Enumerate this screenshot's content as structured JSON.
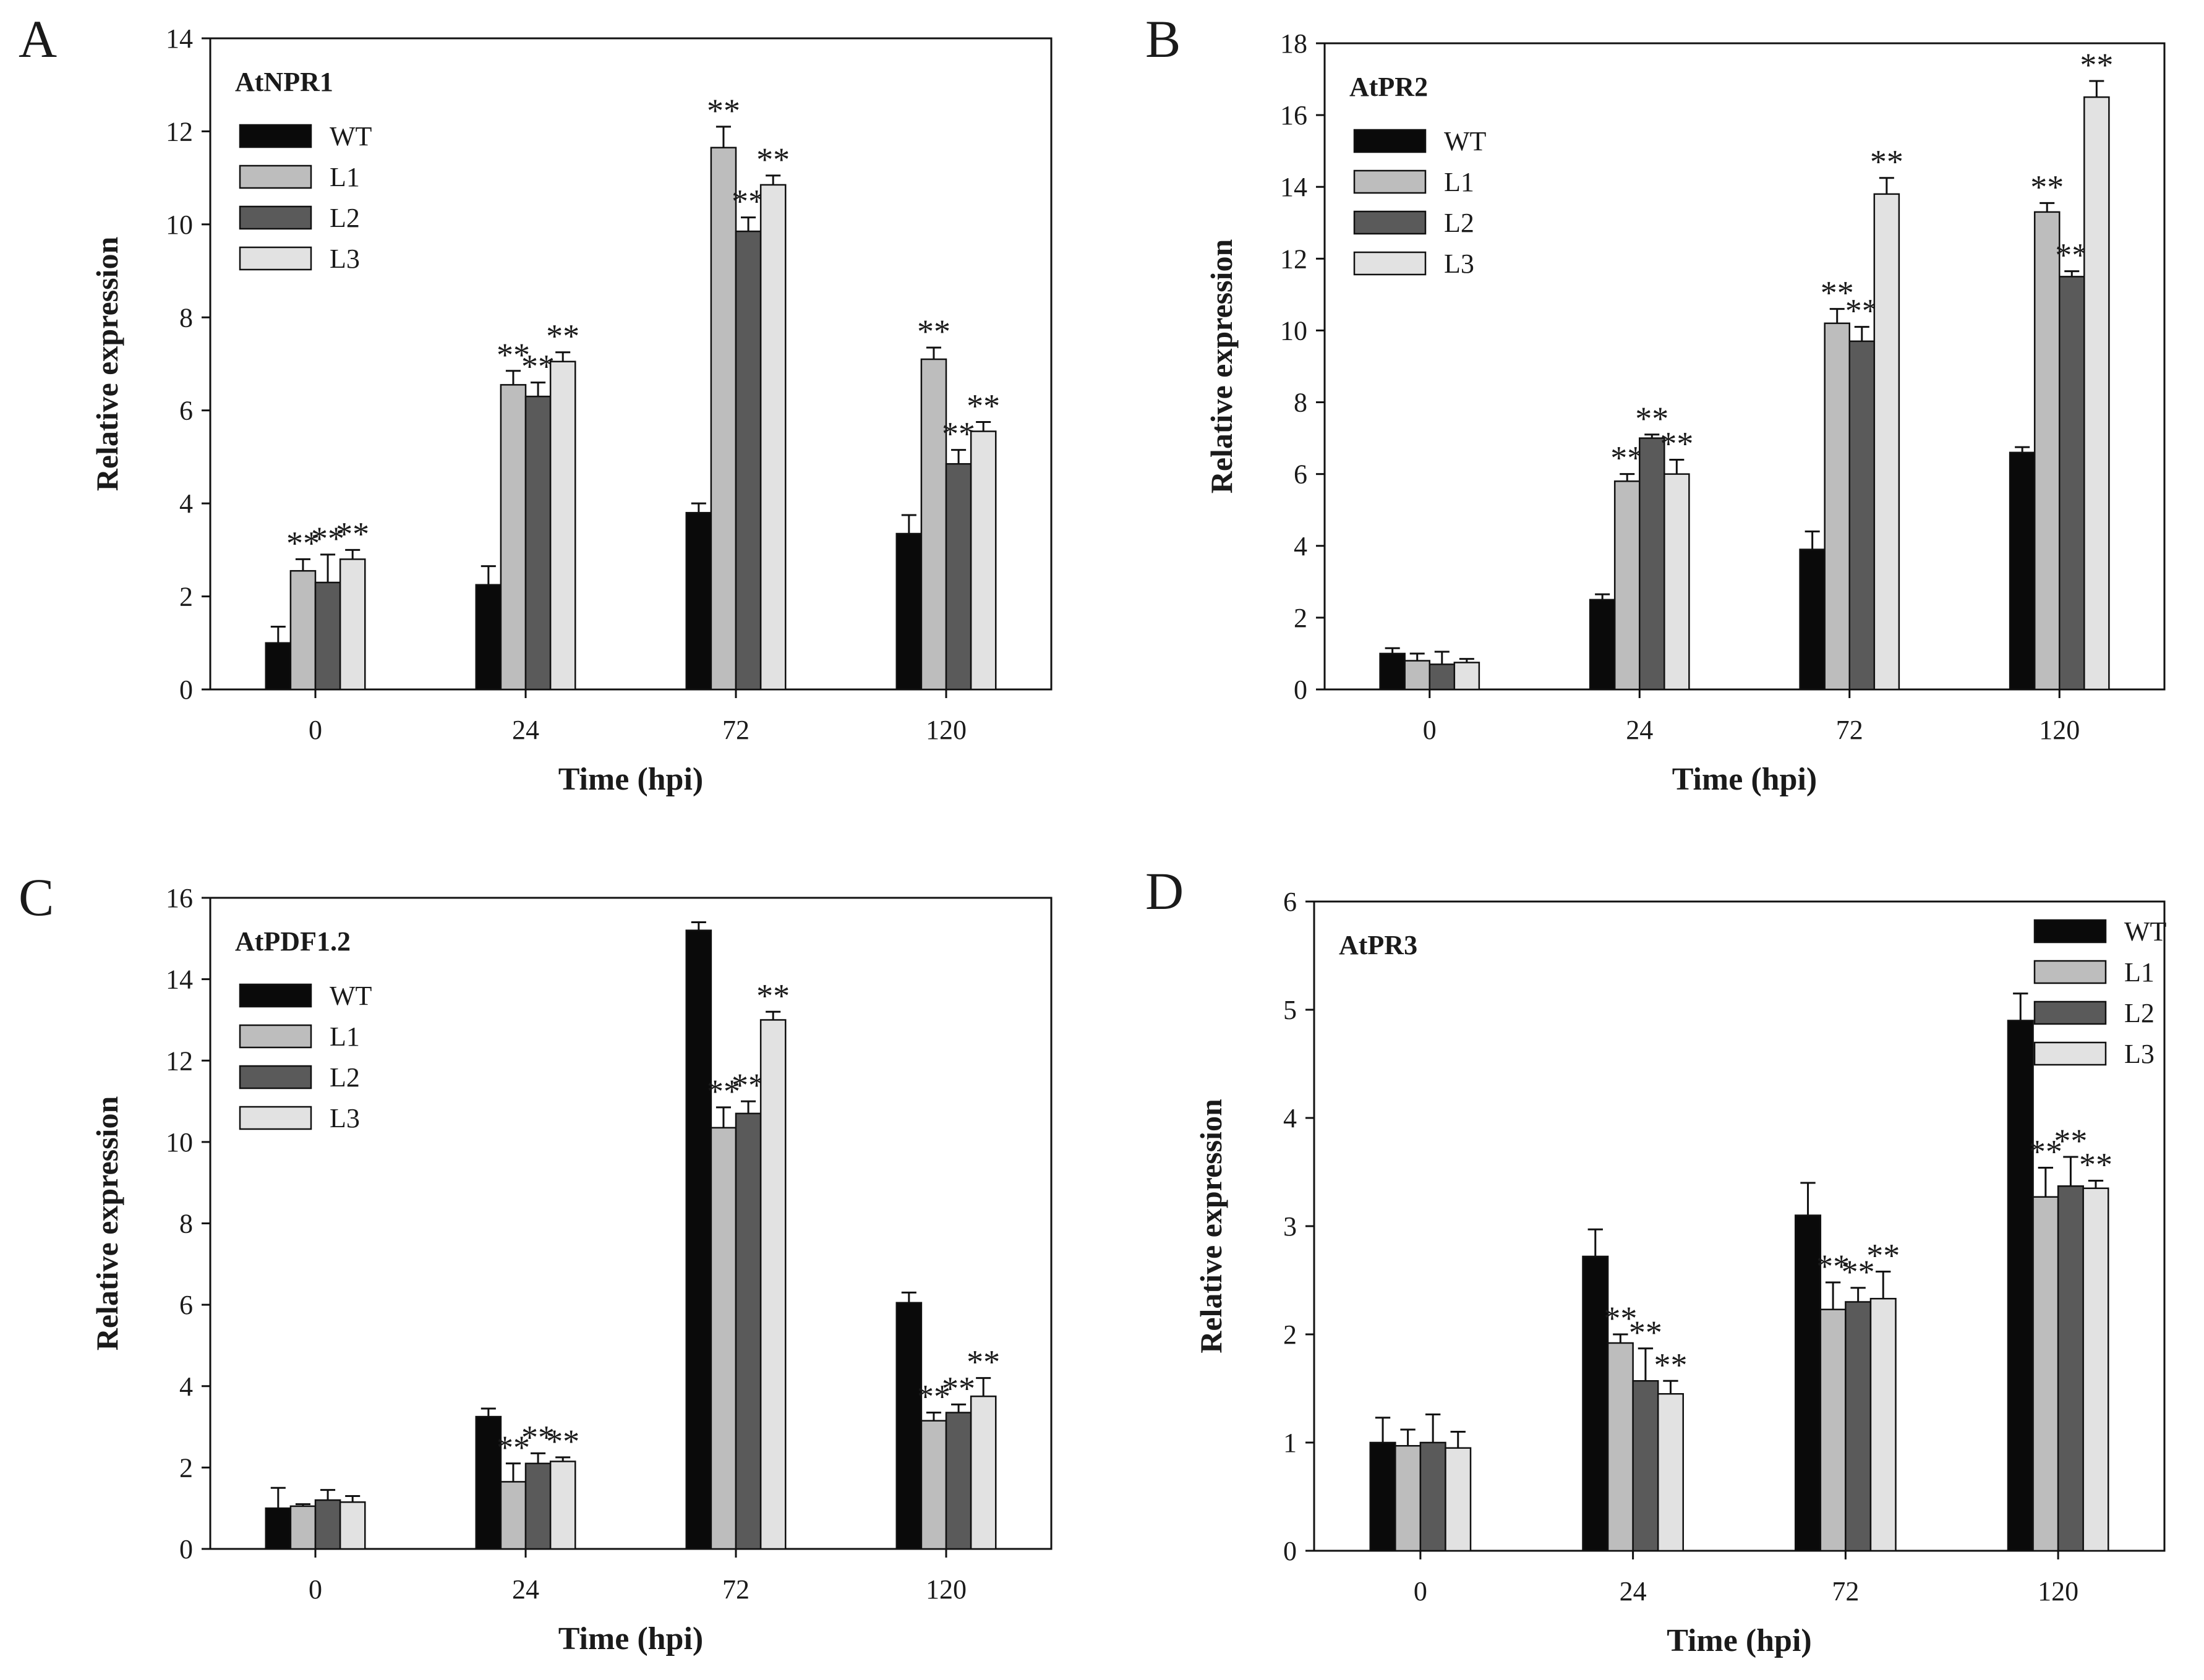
{
  "figure": {
    "series_colors": {
      "WT": "#0a0a0a",
      "L1": "#bdbdbd",
      "L2": "#5a5a5a",
      "L3": "#e2e2e2"
    },
    "significance_mark": "**"
  },
  "chart_data": [
    {
      "panel": "A",
      "type": "bar",
      "title": "AtNPR1",
      "xlabel": "Time (hpi)",
      "ylabel": "Relative expression",
      "ylim": [
        0,
        14
      ],
      "yticks": [
        0,
        2,
        4,
        6,
        8,
        10,
        12,
        14
      ],
      "categories": [
        "0",
        "24",
        "72",
        "120"
      ],
      "legend_position": "top-left",
      "series": [
        {
          "name": "WT",
          "values": [
            1.0,
            2.25,
            3.8,
            3.35
          ],
          "errors": [
            0.35,
            0.4,
            0.2,
            0.4
          ],
          "significant": [
            false,
            false,
            false,
            false
          ]
        },
        {
          "name": "L1",
          "values": [
            2.55,
            6.55,
            11.65,
            7.1
          ],
          "errors": [
            0.25,
            0.3,
            0.45,
            0.25
          ],
          "significant": [
            true,
            true,
            true,
            true
          ]
        },
        {
          "name": "L2",
          "values": [
            2.3,
            6.3,
            9.85,
            4.85
          ],
          "errors": [
            0.6,
            0.3,
            0.3,
            0.3
          ],
          "significant": [
            true,
            true,
            true,
            true
          ]
        },
        {
          "name": "L3",
          "values": [
            2.8,
            7.05,
            10.85,
            5.55
          ],
          "errors": [
            0.2,
            0.2,
            0.2,
            0.2
          ],
          "significant": [
            true,
            true,
            true,
            true
          ]
        }
      ]
    },
    {
      "panel": "B",
      "type": "bar",
      "title": "AtPR2",
      "xlabel": "Time (hpi)",
      "ylabel": "Relative expression",
      "ylim": [
        0,
        18
      ],
      "yticks": [
        0,
        2,
        4,
        6,
        8,
        10,
        12,
        14,
        16,
        18
      ],
      "categories": [
        "0",
        "24",
        "72",
        "120"
      ],
      "legend_position": "top-left",
      "series": [
        {
          "name": "WT",
          "values": [
            1.0,
            2.5,
            3.9,
            6.6
          ],
          "errors": [
            0.15,
            0.15,
            0.5,
            0.15
          ],
          "significant": [
            false,
            false,
            false,
            false
          ]
        },
        {
          "name": "L1",
          "values": [
            0.8,
            5.8,
            10.2,
            13.3
          ],
          "errors": [
            0.2,
            0.2,
            0.4,
            0.25
          ],
          "significant": [
            false,
            true,
            true,
            true
          ]
        },
        {
          "name": "L2",
          "values": [
            0.7,
            7.0,
            9.7,
            11.5
          ],
          "errors": [
            0.35,
            0.1,
            0.4,
            0.15
          ],
          "significant": [
            false,
            true,
            true,
            true
          ]
        },
        {
          "name": "L3",
          "values": [
            0.75,
            6.0,
            13.8,
            16.5
          ],
          "errors": [
            0.1,
            0.4,
            0.45,
            0.45
          ],
          "significant": [
            false,
            true,
            true,
            true
          ]
        }
      ]
    },
    {
      "panel": "C",
      "type": "bar",
      "title": "AtPDF1.2",
      "xlabel": "Time (hpi)",
      "ylabel": "Relative expression",
      "ylim": [
        0,
        16
      ],
      "yticks": [
        0,
        2,
        4,
        6,
        8,
        10,
        12,
        14,
        16
      ],
      "categories": [
        "0",
        "24",
        "72",
        "120"
      ],
      "legend_position": "top-left",
      "series": [
        {
          "name": "WT",
          "values": [
            1.0,
            3.25,
            15.2,
            6.05
          ],
          "errors": [
            0.5,
            0.2,
            0.2,
            0.25
          ],
          "significant": [
            false,
            false,
            false,
            false
          ]
        },
        {
          "name": "L1",
          "values": [
            1.05,
            1.65,
            10.35,
            3.15
          ],
          "errors": [
            0.05,
            0.45,
            0.5,
            0.2
          ],
          "significant": [
            false,
            true,
            true,
            true
          ]
        },
        {
          "name": "L2",
          "values": [
            1.2,
            2.1,
            10.7,
            3.35
          ],
          "errors": [
            0.25,
            0.25,
            0.3,
            0.2
          ],
          "significant": [
            false,
            true,
            true,
            true
          ]
        },
        {
          "name": "L3",
          "values": [
            1.15,
            2.15,
            13.0,
            3.75
          ],
          "errors": [
            0.15,
            0.1,
            0.2,
            0.45
          ],
          "significant": [
            false,
            true,
            true,
            true
          ]
        }
      ]
    },
    {
      "panel": "D",
      "type": "bar",
      "title": "AtPR3",
      "xlabel": "Time (hpi)",
      "ylabel": "Relative expression",
      "ylim": [
        0,
        6
      ],
      "yticks": [
        0,
        1,
        2,
        3,
        4,
        5,
        6
      ],
      "categories": [
        "0",
        "24",
        "72",
        "120"
      ],
      "legend_position": "top-right",
      "series": [
        {
          "name": "WT",
          "values": [
            1.0,
            2.72,
            3.1,
            4.9
          ],
          "errors": [
            0.23,
            0.25,
            0.3,
            0.25
          ],
          "significant": [
            false,
            false,
            false,
            false
          ]
        },
        {
          "name": "L1",
          "values": [
            0.97,
            1.92,
            2.23,
            3.27
          ],
          "errors": [
            0.15,
            0.08,
            0.25,
            0.27
          ],
          "significant": [
            false,
            true,
            true,
            true
          ]
        },
        {
          "name": "L2",
          "values": [
            1.0,
            1.57,
            2.3,
            3.37
          ],
          "errors": [
            0.26,
            0.3,
            0.13,
            0.27
          ],
          "significant": [
            false,
            true,
            true,
            true
          ]
        },
        {
          "name": "L3",
          "values": [
            0.95,
            1.45,
            2.33,
            3.35
          ],
          "errors": [
            0.15,
            0.12,
            0.25,
            0.07
          ],
          "significant": [
            false,
            true,
            true,
            true
          ]
        }
      ]
    }
  ]
}
